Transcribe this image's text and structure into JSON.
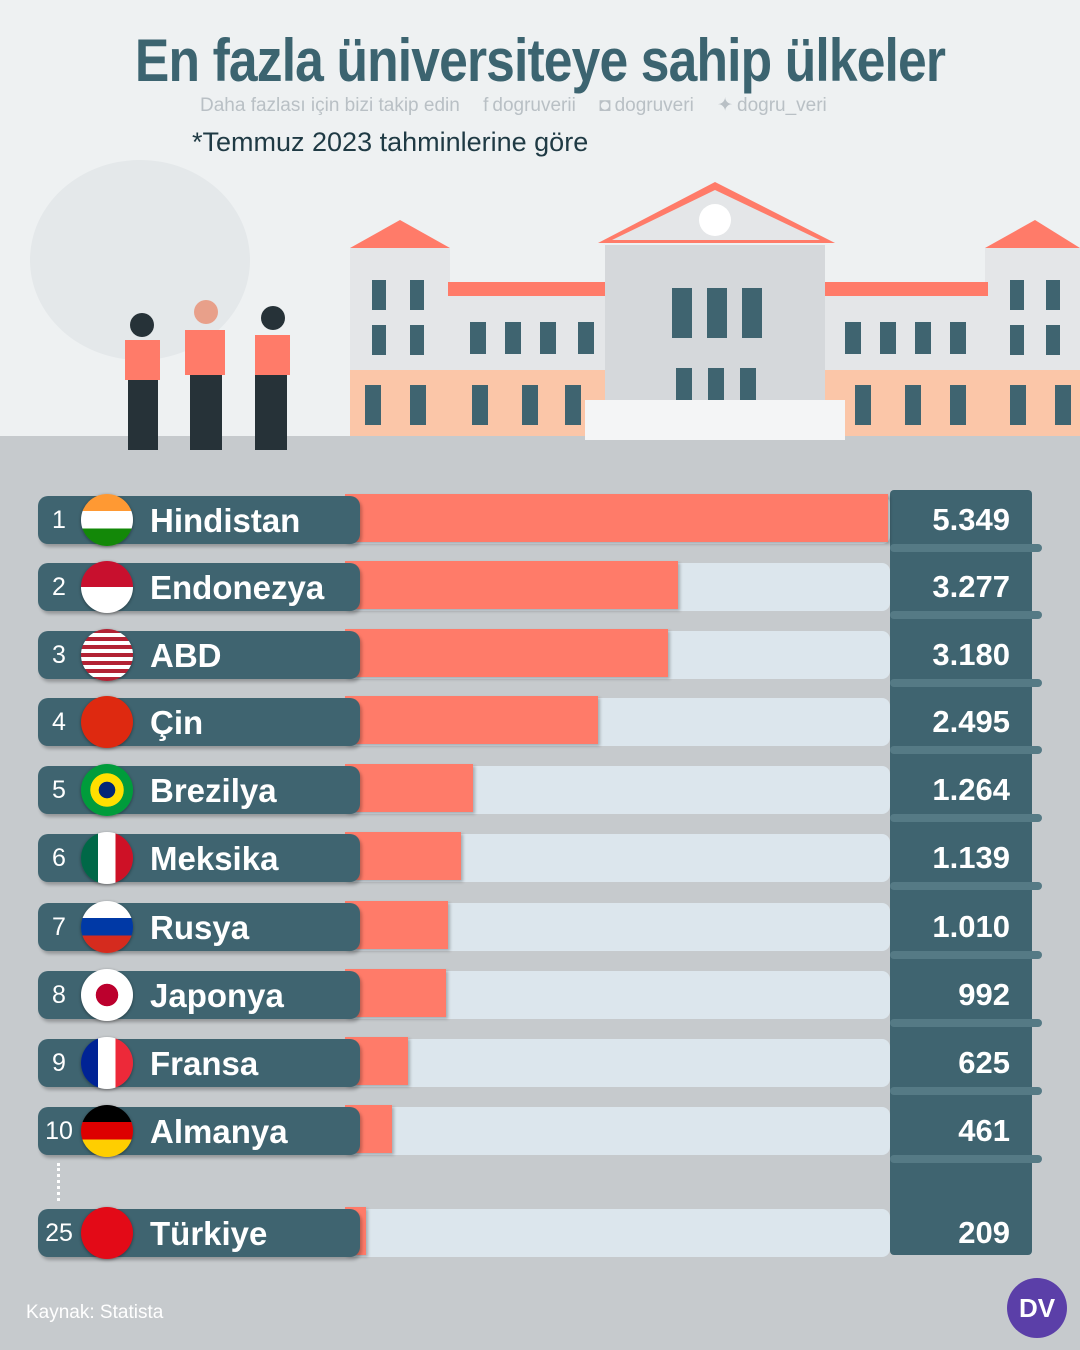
{
  "header": {
    "title": "En fazla üniversiteye sahip ülkeler",
    "follow_text": "Daha fazlası için bizi takip edin",
    "facebook": "dogruverii",
    "instagram": "dogruveri",
    "twitter": "dogru_veri",
    "note": "*Temmuz 2023 tahminlerine göre"
  },
  "footer": {
    "source": "Kaynak: Statista",
    "logo": "DV"
  },
  "colors": {
    "bar": "#ff7b69",
    "track": "#dce6ed",
    "label_bg": "#3f6470",
    "background": "#c6cacd"
  },
  "chart_data": {
    "type": "bar",
    "orientation": "horizontal",
    "xlim": [
      0,
      5349
    ],
    "categories": [
      "Hindistan",
      "Endonezya",
      "ABD",
      "Çin",
      "Brezilya",
      "Meksika",
      "Rusya",
      "Japonya",
      "Fransa",
      "Almanya",
      "Türkiye"
    ],
    "ranks": [
      "1",
      "2",
      "3",
      "4",
      "5",
      "6",
      "7",
      "8",
      "9",
      "10",
      "25"
    ],
    "values": [
      5349,
      3277,
      3180,
      2495,
      1264,
      1139,
      1010,
      992,
      625,
      461,
      209
    ],
    "labels": [
      "5.349",
      "3.277",
      "3.180",
      "2.495",
      "1.264",
      "1.139",
      "1.010",
      "992",
      "625",
      "461",
      "209"
    ],
    "flags": [
      "india",
      "indonesia",
      "usa",
      "china",
      "brazil",
      "mexico",
      "russia",
      "japan",
      "france",
      "germany",
      "turkey"
    ]
  }
}
